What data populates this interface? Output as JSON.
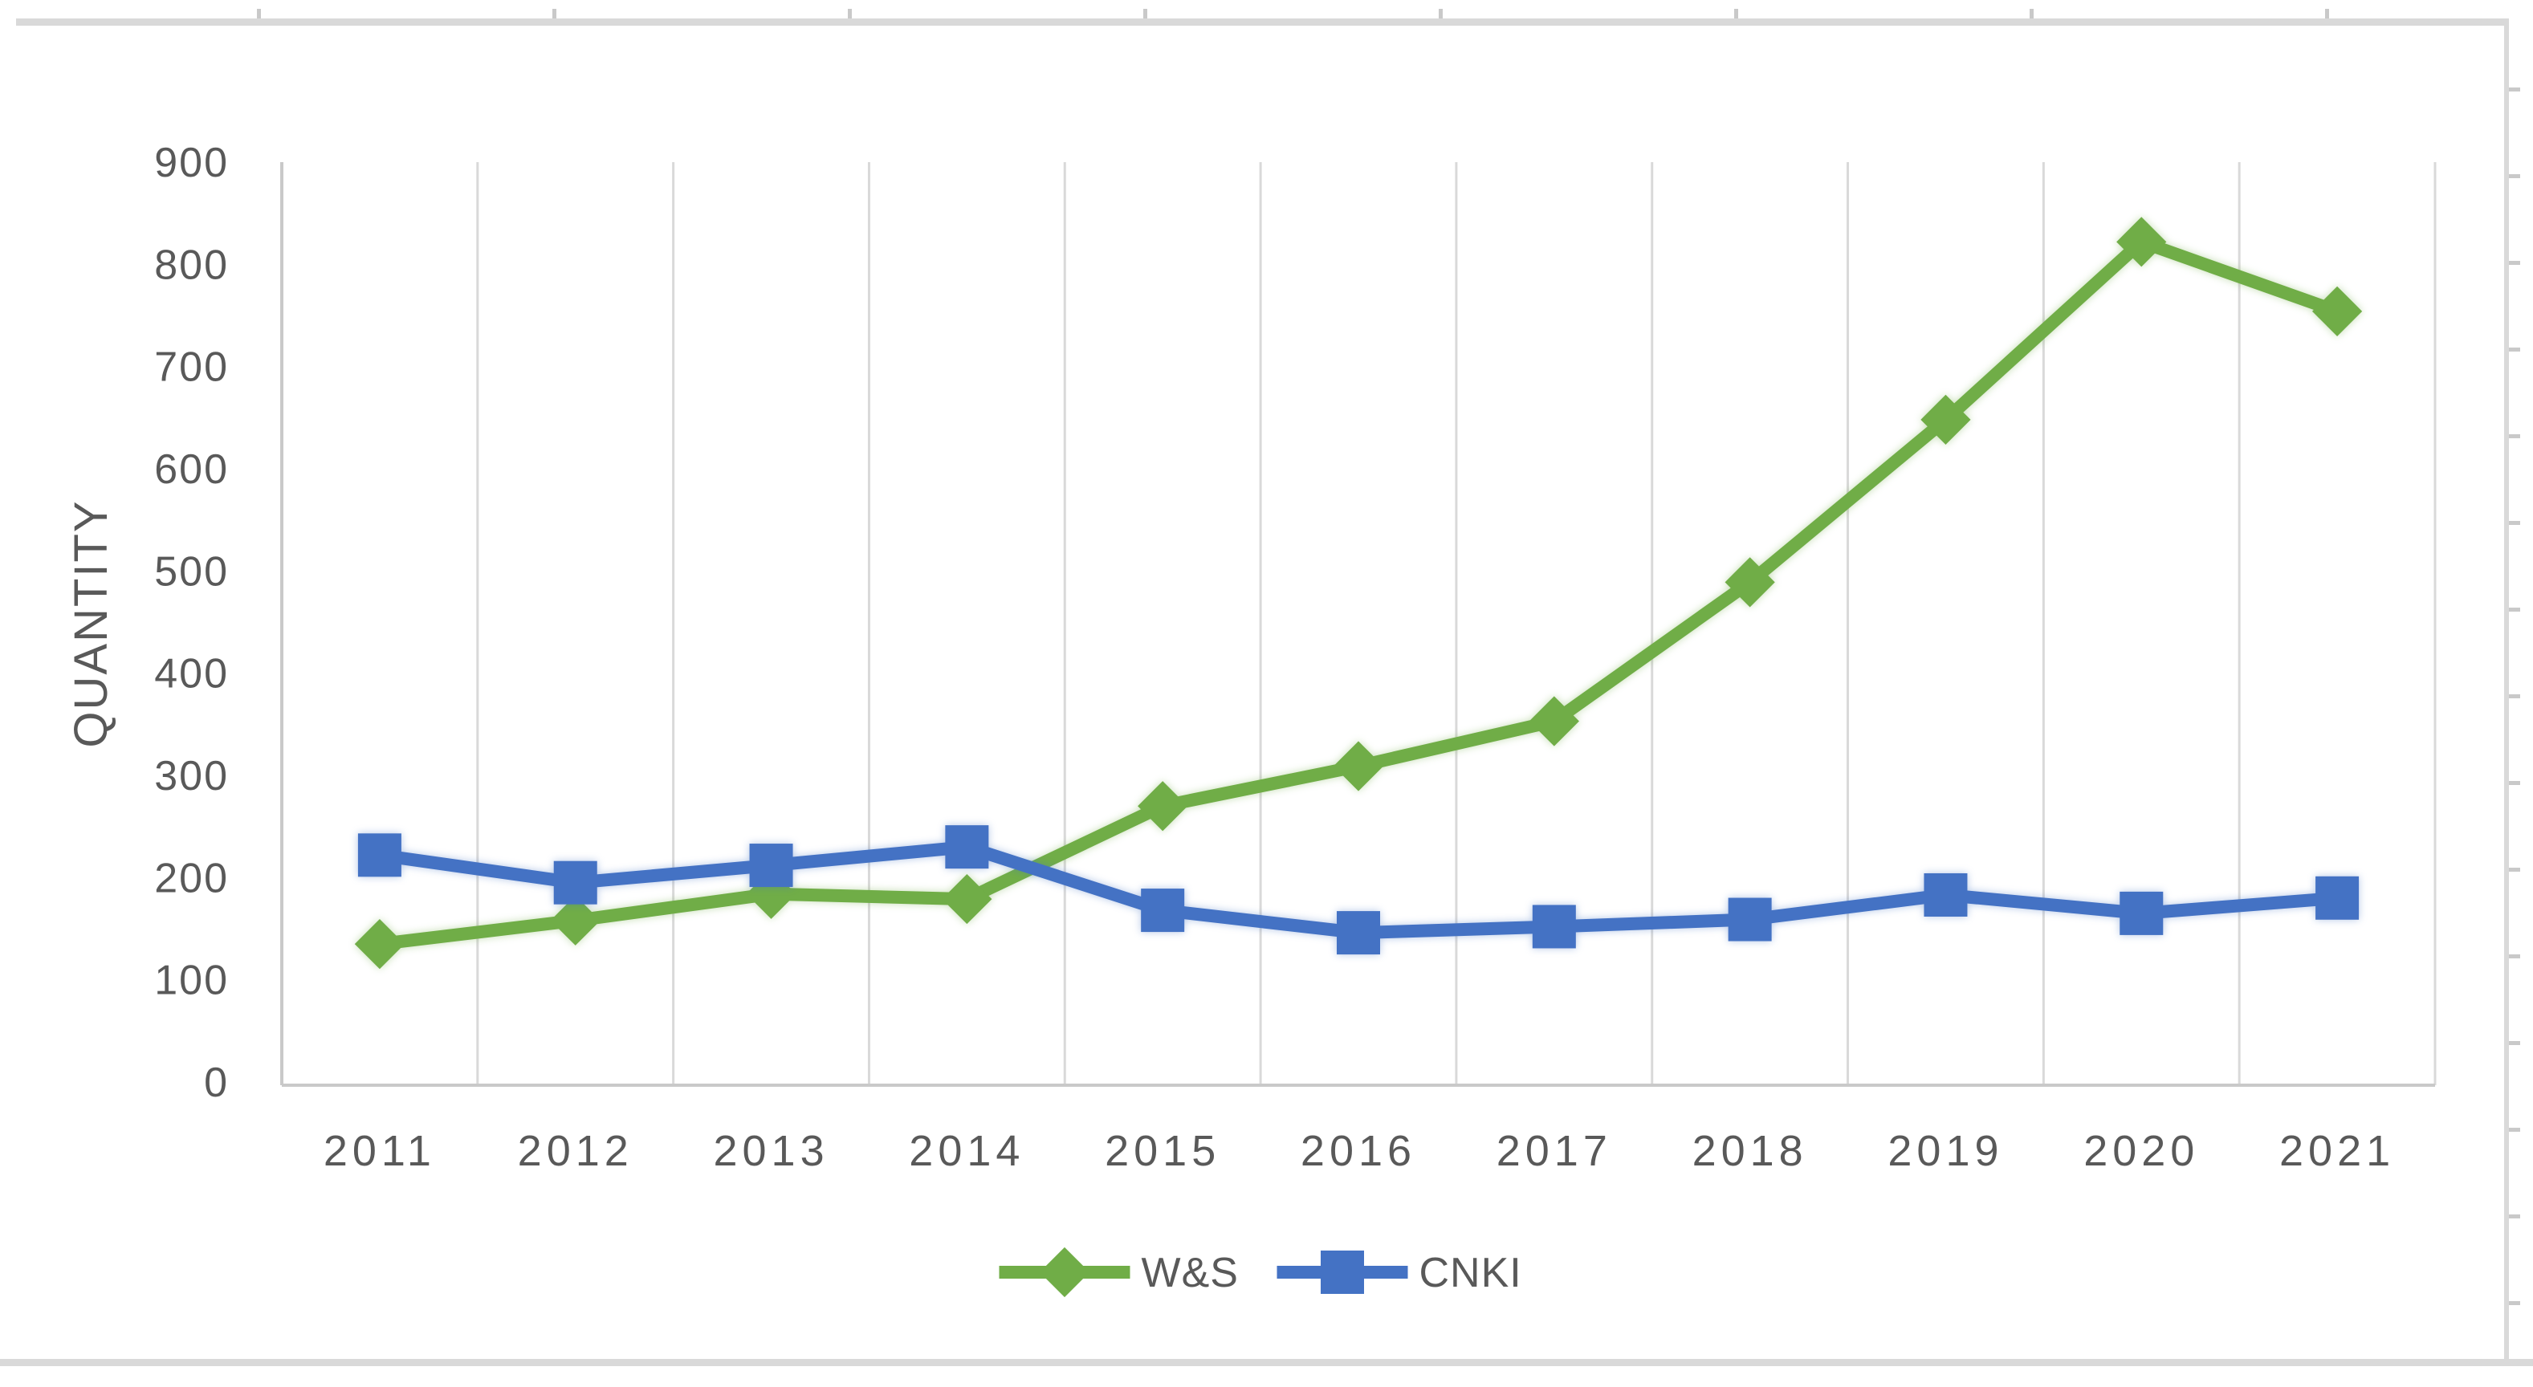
{
  "chart_data": {
    "type": "line",
    "title": "",
    "xlabel": "",
    "ylabel": "QUANTITY",
    "x": [
      "2011",
      "2012",
      "2013",
      "2014",
      "2015",
      "2016",
      "2017",
      "2018",
      "2019",
      "2020",
      "2021"
    ],
    "series": [
      {
        "name": "W&S",
        "color": "#70AD47",
        "marker": "diamond",
        "values": [
          135,
          158,
          184,
          179,
          270,
          309,
          353,
          489,
          648,
          822,
          754
        ]
      },
      {
        "name": "CNKI",
        "color": "#4472C4",
        "marker": "square",
        "values": [
          222,
          195,
          212,
          230,
          168,
          146,
          152,
          159,
          183,
          165,
          180
        ]
      }
    ],
    "ylim": [
      0,
      900
    ],
    "ytick_step": 100,
    "ytick_labels": [
      "0",
      "100",
      "200",
      "300",
      "400",
      "500",
      "600",
      "700",
      "800",
      "900"
    ],
    "grid": "vertical-only",
    "legend_position": "bottom"
  },
  "colors": {
    "axis_text": "#595959",
    "gridline": "#D9D9D9",
    "axis_line": "#C9C9C9",
    "frame_band": "#D9D9D9",
    "frame_tick": "#C9C9C9",
    "background": "#FFFFFF"
  }
}
